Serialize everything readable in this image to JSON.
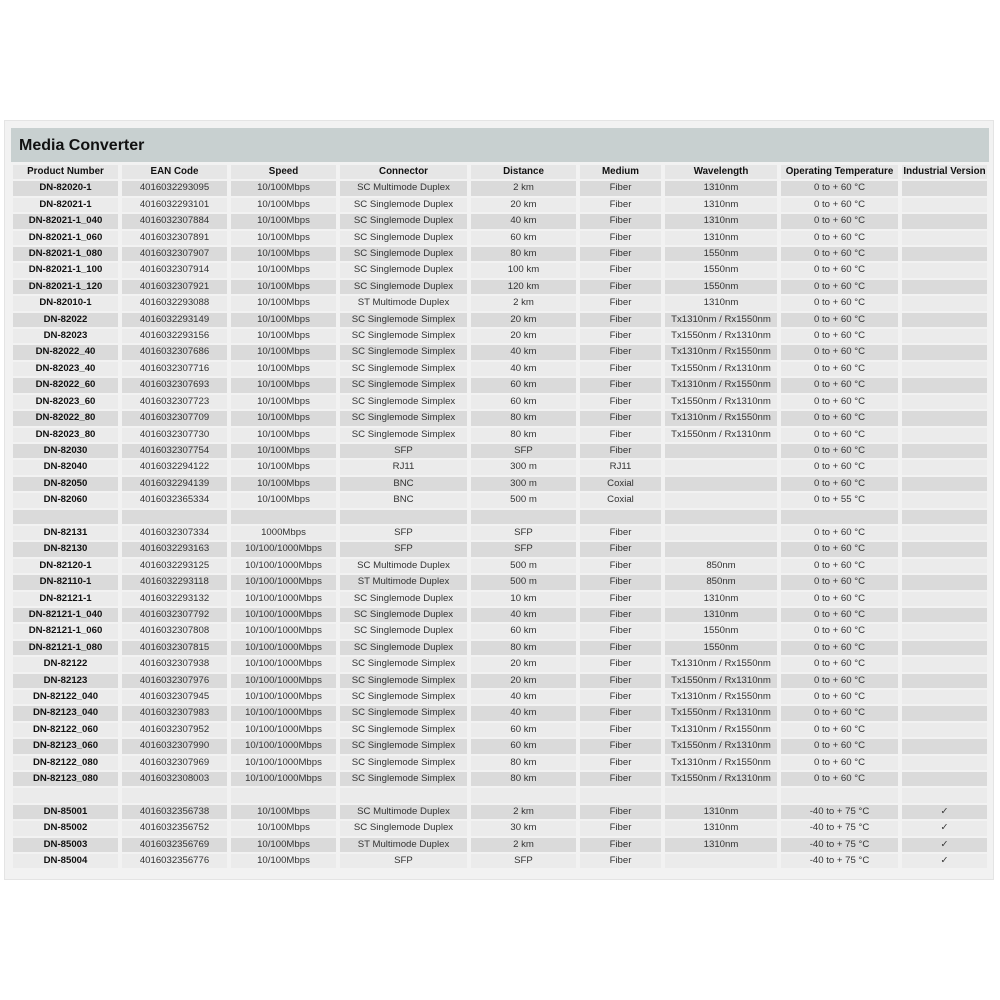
{
  "title": "Media Converter",
  "columns": [
    "Product Number",
    "EAN Code",
    "Speed",
    "Connector",
    "Distance",
    "Medium",
    "Wavelength",
    "Operating Temperature",
    "Industrial Version"
  ],
  "rows": [
    [
      "DN-82020-1",
      "4016032293095",
      "10/100Mbps",
      "SC Multimode Duplex",
      "2 km",
      "Fiber",
      "1310nm",
      "0 to + 60 °C",
      ""
    ],
    [
      "DN-82021-1",
      "4016032293101",
      "10/100Mbps",
      "SC Singlemode Duplex",
      "20 km",
      "Fiber",
      "1310nm",
      "0 to + 60 °C",
      ""
    ],
    [
      "DN-82021-1_040",
      "4016032307884",
      "10/100Mbps",
      "SC Singlemode Duplex",
      "40 km",
      "Fiber",
      "1310nm",
      "0 to + 60 °C",
      ""
    ],
    [
      "DN-82021-1_060",
      "4016032307891",
      "10/100Mbps",
      "SC Singlemode Duplex",
      "60 km",
      "Fiber",
      "1310nm",
      "0 to + 60 °C",
      ""
    ],
    [
      "DN-82021-1_080",
      "4016032307907",
      "10/100Mbps",
      "SC Singlemode Duplex",
      "80 km",
      "Fiber",
      "1550nm",
      "0 to + 60 °C",
      ""
    ],
    [
      "DN-82021-1_100",
      "4016032307914",
      "10/100Mbps",
      "SC Singlemode Duplex",
      "100 km",
      "Fiber",
      "1550nm",
      "0 to + 60 °C",
      ""
    ],
    [
      "DN-82021-1_120",
      "4016032307921",
      "10/100Mbps",
      "SC Singlemode Duplex",
      "120 km",
      "Fiber",
      "1550nm",
      "0 to + 60 °C",
      ""
    ],
    [
      "DN-82010-1",
      "4016032293088",
      "10/100Mbps",
      "ST Multimode Duplex",
      "2 km",
      "Fiber",
      "1310nm",
      "0 to + 60 °C",
      ""
    ],
    [
      "DN-82022",
      "4016032293149",
      "10/100Mbps",
      "SC Singlemode Simplex",
      "20 km",
      "Fiber",
      "Tx1310nm / Rx1550nm",
      "0 to + 60 °C",
      ""
    ],
    [
      "DN-82023",
      "4016032293156",
      "10/100Mbps",
      "SC Singlemode Simplex",
      "20 km",
      "Fiber",
      "Tx1550nm / Rx1310nm",
      "0 to + 60 °C",
      ""
    ],
    [
      "DN-82022_40",
      "4016032307686",
      "10/100Mbps",
      "SC Singlemode Simplex",
      "40 km",
      "Fiber",
      "Tx1310nm / Rx1550nm",
      "0 to + 60 °C",
      ""
    ],
    [
      "DN-82023_40",
      "4016032307716",
      "10/100Mbps",
      "SC Singlemode Simplex",
      "40 km",
      "Fiber",
      "Tx1550nm / Rx1310nm",
      "0 to + 60 °C",
      ""
    ],
    [
      "DN-82022_60",
      "4016032307693",
      "10/100Mbps",
      "SC Singlemode Simplex",
      "60 km",
      "Fiber",
      "Tx1310nm / Rx1550nm",
      "0 to + 60 °C",
      ""
    ],
    [
      "DN-82023_60",
      "4016032307723",
      "10/100Mbps",
      "SC Singlemode Simplex",
      "60 km",
      "Fiber",
      "Tx1550nm / Rx1310nm",
      "0 to + 60 °C",
      ""
    ],
    [
      "DN-82022_80",
      "4016032307709",
      "10/100Mbps",
      "SC Singlemode Simplex",
      "80 km",
      "Fiber",
      "Tx1310nm / Rx1550nm",
      "0 to + 60 °C",
      ""
    ],
    [
      "DN-82023_80",
      "4016032307730",
      "10/100Mbps",
      "SC Singlemode Simplex",
      "80 km",
      "Fiber",
      "Tx1550nm / Rx1310nm",
      "0 to + 60 °C",
      ""
    ],
    [
      "DN-82030",
      "4016032307754",
      "10/100Mbps",
      "SFP",
      "SFP",
      "Fiber",
      "",
      "0 to + 60 °C",
      ""
    ],
    [
      "DN-82040",
      "4016032294122",
      "10/100Mbps",
      "RJ11",
      "300 m",
      "RJ11",
      "",
      "0 to + 60 °C",
      ""
    ],
    [
      "DN-82050",
      "4016032294139",
      "10/100Mbps",
      "BNC",
      "300 m",
      "Coxial",
      "",
      "0 to + 60 °C",
      ""
    ],
    [
      "DN-82060",
      "4016032365334",
      "10/100Mbps",
      "BNC",
      "500 m",
      "Coxial",
      "",
      "0 to + 55 °C",
      ""
    ],
    [
      "",
      "",
      "",
      "",
      "",
      "",
      "",
      "",
      ""
    ],
    [
      "DN-82131",
      "4016032307334",
      "1000Mbps",
      "SFP",
      "SFP",
      "Fiber",
      "",
      "0 to + 60 °C",
      ""
    ],
    [
      "DN-82130",
      "4016032293163",
      "10/100/1000Mbps",
      "SFP",
      "SFP",
      "Fiber",
      "",
      "0 to + 60 °C",
      ""
    ],
    [
      "DN-82120-1",
      "4016032293125",
      "10/100/1000Mbps",
      "SC Multimode Duplex",
      "500 m",
      "Fiber",
      "850nm",
      "0 to + 60 °C",
      ""
    ],
    [
      "DN-82110-1",
      "4016032293118",
      "10/100/1000Mbps",
      "ST Multimode Duplex",
      "500 m",
      "Fiber",
      "850nm",
      "0 to + 60 °C",
      ""
    ],
    [
      "DN-82121-1",
      "4016032293132",
      "10/100/1000Mbps",
      "SC Singlemode Duplex",
      "10 km",
      "Fiber",
      "1310nm",
      "0 to + 60 °C",
      ""
    ],
    [
      "DN-82121-1_040",
      "4016032307792",
      "10/100/1000Mbps",
      "SC Singlemode Duplex",
      "40 km",
      "Fiber",
      "1310nm",
      "0 to + 60 °C",
      ""
    ],
    [
      "DN-82121-1_060",
      "4016032307808",
      "10/100/1000Mbps",
      "SC Singlemode Duplex",
      "60 km",
      "Fiber",
      "1550nm",
      "0 to + 60 °C",
      ""
    ],
    [
      "DN-82121-1_080",
      "4016032307815",
      "10/100/1000Mbps",
      "SC Singlemode Duplex",
      "80 km",
      "Fiber",
      "1550nm",
      "0 to + 60 °C",
      ""
    ],
    [
      "DN-82122",
      "4016032307938",
      "10/100/1000Mbps",
      "SC Singlemode Simplex",
      "20 km",
      "Fiber",
      "Tx1310nm / Rx1550nm",
      "0 to + 60 °C",
      ""
    ],
    [
      "DN-82123",
      "4016032307976",
      "10/100/1000Mbps",
      "SC Singlemode Simplex",
      "20 km",
      "Fiber",
      "Tx1550nm / Rx1310nm",
      "0 to + 60 °C",
      ""
    ],
    [
      "DN-82122_040",
      "4016032307945",
      "10/100/1000Mbps",
      "SC Singlemode Simplex",
      "40 km",
      "Fiber",
      "Tx1310nm / Rx1550nm",
      "0 to + 60 °C",
      ""
    ],
    [
      "DN-82123_040",
      "4016032307983",
      "10/100/1000Mbps",
      "SC Singlemode Simplex",
      "40 km",
      "Fiber",
      "Tx1550nm / Rx1310nm",
      "0 to + 60 °C",
      ""
    ],
    [
      "DN-82122_060",
      "4016032307952",
      "10/100/1000Mbps",
      "SC Singlemode Simplex",
      "60 km",
      "Fiber",
      "Tx1310nm / Rx1550nm",
      "0 to + 60 °C",
      ""
    ],
    [
      "DN-82123_060",
      "4016032307990",
      "10/100/1000Mbps",
      "SC Singlemode Simplex",
      "60 km",
      "Fiber",
      "Tx1550nm / Rx1310nm",
      "0 to + 60 °C",
      ""
    ],
    [
      "DN-82122_080",
      "4016032307969",
      "10/100/1000Mbps",
      "SC Singlemode Simplex",
      "80 km",
      "Fiber",
      "Tx1310nm / Rx1550nm",
      "0 to + 60 °C",
      ""
    ],
    [
      "DN-82123_080",
      "4016032308003",
      "10/100/1000Mbps",
      "SC Singlemode Simplex",
      "80 km",
      "Fiber",
      "Tx1550nm / Rx1310nm",
      "0 to + 60 °C",
      ""
    ],
    [
      "",
      "",
      "",
      "",
      "",
      "",
      "",
      "",
      ""
    ],
    [
      "DN-85001",
      "4016032356738",
      "10/100Mbps",
      "SC Multimode Duplex",
      "2 km",
      "Fiber",
      "1310nm",
      "-40 to + 75 °C",
      "✓"
    ],
    [
      "DN-85002",
      "4016032356752",
      "10/100Mbps",
      "SC Singlemode Duplex",
      "30 km",
      "Fiber",
      "1310nm",
      "-40 to + 75 °C",
      "✓"
    ],
    [
      "DN-85003",
      "4016032356769",
      "10/100Mbps",
      "ST Multimode Duplex",
      "2 km",
      "Fiber",
      "1310nm",
      "-40 to + 75 °C",
      "✓"
    ],
    [
      "DN-85004",
      "4016032356776",
      "10/100Mbps",
      "SFP",
      "SFP",
      "Fiber",
      "",
      "-40 to + 75 °C",
      "✓"
    ]
  ]
}
